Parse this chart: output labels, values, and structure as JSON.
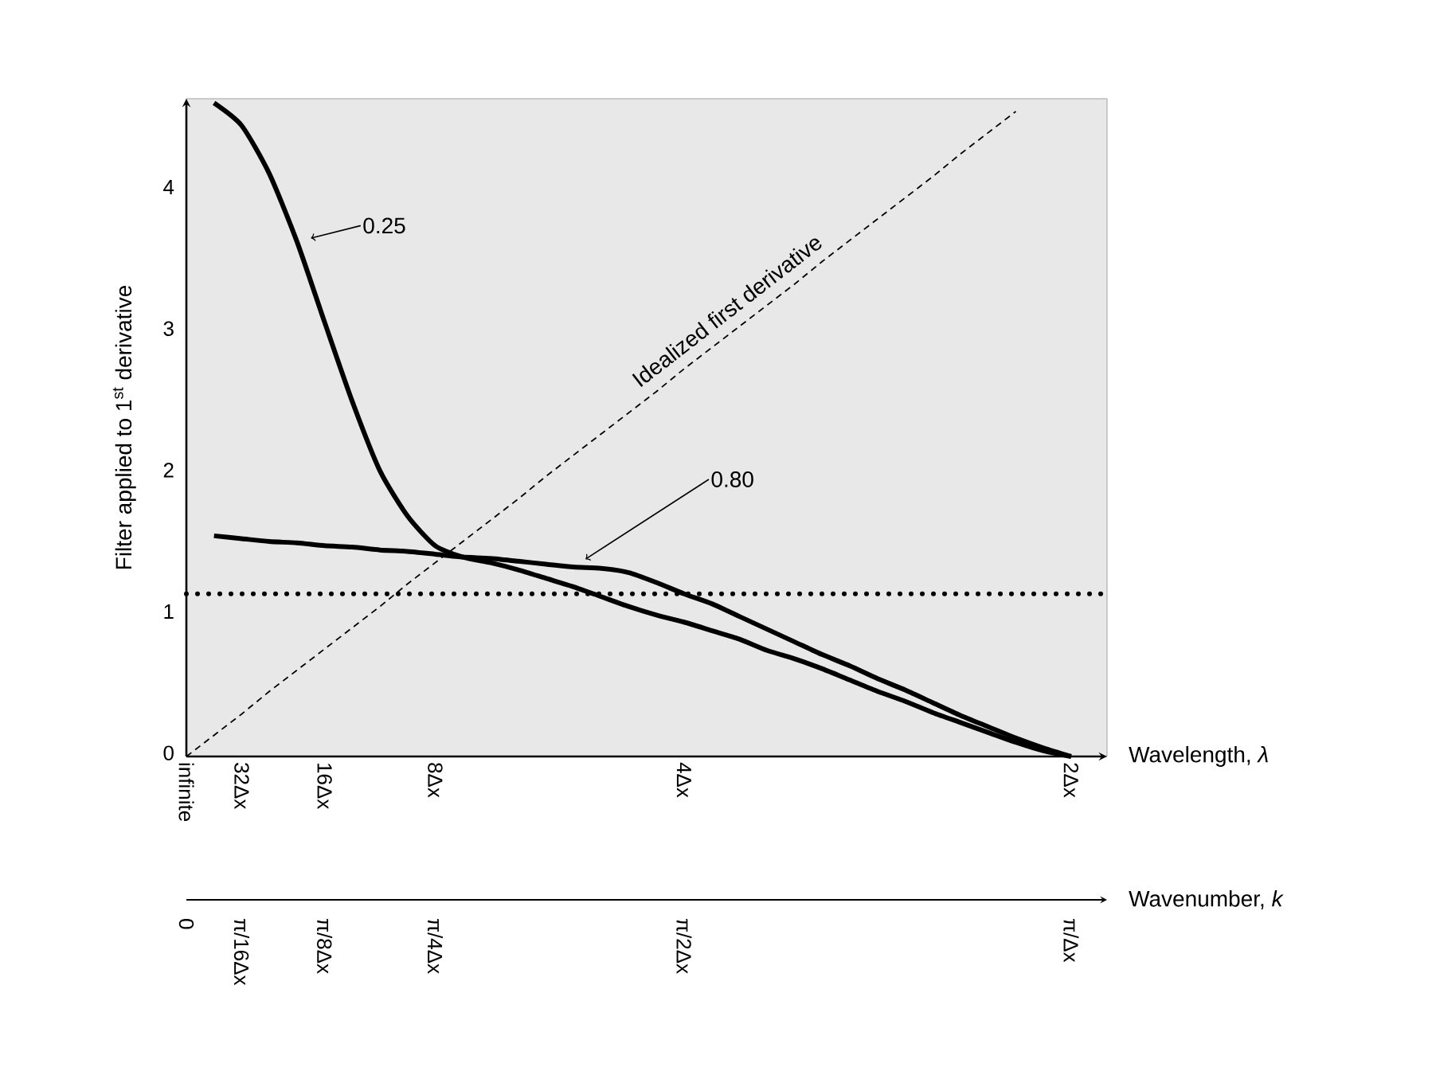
{
  "chart_data": {
    "type": "line",
    "xlabel": "Wavelength, *λ*",
    "ylabel": "Filter applied to 1$^{st}$ derivative",
    "x2label": "Wavenumber, *k*",
    "categories": [
      "infinite",
      null,
      "32Δx",
      null,
      null,
      "16Δx",
      null,
      null,
      null,
      "8Δx",
      null,
      null,
      null,
      null,
      null,
      null,
      null,
      null,
      "4Δx",
      null,
      null,
      null,
      null,
      null,
      null,
      null,
      null,
      null,
      null,
      null,
      null,
      null,
      "2Δx"
    ],
    "ylim": [
      0,
      4.65
    ],
    "yticks": [
      0,
      1,
      2,
      3,
      4
    ],
    "grid": false,
    "marker": "none",
    "annotations": [
      "0",
      "π/16Δx",
      "π/8Δx",
      "π/4Δx",
      "π/2Δx",
      "π/Δx"
    ],
    "ref_lines": [
      {
        "axis": "y",
        "value": 1.15,
        "color": "#000000",
        "line_style": "dotted"
      }
    ],
    "series": [
      {
        "name": "0.25",
        "color": "#000000",
        "line_style": "solid",
        "values": [
          null,
          4.62,
          4.46,
          4.12,
          3.64,
          3.07,
          2.51,
          2.02,
          1.7,
          1.49,
          1.41,
          1.37,
          1.32,
          1.26,
          1.2,
          1.13,
          1.06,
          1.0,
          0.95,
          0.89,
          0.83,
          0.75,
          0.69,
          0.62,
          0.54,
          0.46,
          0.39,
          0.31,
          0.24,
          0.17,
          0.1,
          0.04,
          0
        ]
      },
      {
        "name": "0.80",
        "color": "#000000",
        "line_style": "solid",
        "values": [
          null,
          1.56,
          1.54,
          1.52,
          1.51,
          1.49,
          1.48,
          1.46,
          1.45,
          1.43,
          1.41,
          1.4,
          1.38,
          1.36,
          1.34,
          1.33,
          1.3,
          1.23,
          1.15,
          1.08,
          0.99,
          0.9,
          0.81,
          0.72,
          0.64,
          0.55,
          0.47,
          0.38,
          0.29,
          0.21,
          0.13,
          0.06,
          0
        ]
      },
      {
        "name": "Idealized first derivative",
        "color": "#000000",
        "line_style": "dashed",
        "values": [
          0,
          0.15,
          0.3,
          0.46,
          0.61,
          0.76,
          0.91,
          1.06,
          1.22,
          1.37,
          1.52,
          1.67,
          1.82,
          1.98,
          2.13,
          2.28,
          2.43,
          2.58,
          2.74,
          2.89,
          3.04,
          3.19,
          3.34,
          3.5,
          3.65,
          3.8,
          3.95,
          4.1,
          4.26,
          4.41,
          4.56,
          null,
          null
        ]
      }
    ]
  }
}
